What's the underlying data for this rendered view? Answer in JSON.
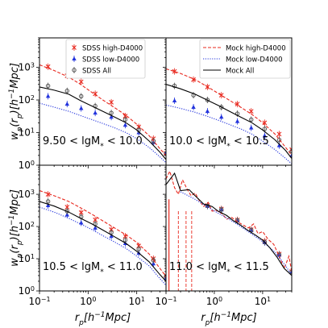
{
  "chart_data": [
    {
      "type": "line",
      "panel_label": "9.50 < lgM* < 10.0",
      "label_main": "9.50 < lgM",
      "label_tail": " < 10.0",
      "legend": [
        "SDSS high-D4000",
        "SDSS low-D4000",
        "SDSS All"
      ],
      "xscale": "log",
      "yscale": "log",
      "xlim": [
        0.1,
        40
      ],
      "ylim": [
        1,
        8000
      ],
      "series": [
        {
          "name": "SDSS high-D4000",
          "style": "errorbar",
          "marker": "x",
          "color": "#e8281e",
          "x": [
            0.15,
            0.37,
            0.72,
            1.4,
            3.0,
            5.8,
            11.0,
            22.0,
            40.0
          ],
          "y": [
            1050,
            550,
            360,
            155,
            85,
            32,
            15,
            6.5,
            2.3
          ]
        },
        {
          "name": "SDSS low-D4000",
          "style": "errorbar",
          "marker": "triangle",
          "color": "#2233dd",
          "x": [
            0.15,
            0.37,
            0.72,
            1.4,
            3.0,
            5.8,
            11.0,
            22.0,
            40.0
          ],
          "y": [
            130,
            75,
            55,
            40,
            30,
            17,
            10,
            5,
            2.4
          ]
        },
        {
          "name": "SDSS All",
          "style": "errorbar",
          "marker": "o",
          "color": "#555555",
          "x": [
            0.15,
            0.37,
            0.72,
            1.4,
            3.0,
            5.8,
            11.0,
            22.0,
            40.0
          ],
          "y": [
            270,
            190,
            130,
            65,
            40,
            25,
            12,
            5.5,
            2.3
          ]
        },
        {
          "name": "Mock high-D4000",
          "style": "dashed",
          "color": "#e8281e",
          "x": [
            0.1,
            0.2,
            0.4,
            0.7,
            1.2,
            2,
            3.5,
            6,
            10,
            18,
            30,
            40
          ],
          "y": [
            1200,
            800,
            500,
            300,
            170,
            100,
            58,
            34,
            18,
            8,
            3.2,
            2
          ]
        },
        {
          "name": "Mock low-D4000",
          "style": "dotted",
          "color": "#2233dd",
          "x": [
            0.1,
            0.2,
            0.4,
            0.7,
            1.2,
            2,
            3.5,
            6,
            10,
            18,
            30,
            40
          ],
          "y": [
            80,
            60,
            45,
            33,
            25,
            19,
            14,
            10,
            6.5,
            3.5,
            1.8,
            1.2
          ]
        },
        {
          "name": "Mock All",
          "style": "solid",
          "color": "#000000",
          "x": [
            0.1,
            0.2,
            0.4,
            0.7,
            1.2,
            2,
            3.5,
            6,
            10,
            18,
            30,
            40
          ],
          "y": [
            250,
            200,
            150,
            95,
            65,
            45,
            30,
            20,
            12,
            5.5,
            2.5,
            1.5
          ]
        }
      ]
    },
    {
      "type": "line",
      "panel_label": "10.0 < lgM* < 10.5",
      "label_main": "10.0 < lgM",
      "label_tail": " < 10.5",
      "legend": [
        "Mock high-D4000",
        "Mock low-D4000",
        "Mock All"
      ],
      "xscale": "log",
      "yscale": "log",
      "xlim": [
        0.1,
        40
      ],
      "ylim": [
        1,
        8000
      ],
      "series": [
        {
          "name": "SDSS high-D4000",
          "style": "errorbar",
          "marker": "x",
          "color": "#e8281e",
          "x": [
            0.15,
            0.37,
            0.72,
            1.4,
            3.0,
            5.8,
            11.0,
            22.0,
            40.0
          ],
          "y": [
            750,
            420,
            250,
            140,
            75,
            45,
            20,
            9,
            3
          ]
        },
        {
          "name": "SDSS low-D4000",
          "style": "errorbar",
          "marker": "triangle",
          "color": "#2233dd",
          "x": [
            0.15,
            0.37,
            0.72,
            1.4,
            3.0,
            5.8,
            11.0,
            22.0,
            40.0
          ],
          "y": [
            95,
            60,
            45,
            30,
            22,
            14,
            8,
            4,
            2
          ]
        },
        {
          "name": "SDSS All",
          "style": "errorbar",
          "marker": "o",
          "color": "#555555",
          "x": [
            0.15,
            0.37,
            0.72,
            1.4,
            3.0,
            5.8,
            11.0,
            22.0,
            40.0
          ],
          "y": [
            270,
            140,
            100,
            60,
            38,
            25,
            13,
            6,
            2.7
          ]
        },
        {
          "name": "Mock high-D4000",
          "style": "dashed",
          "color": "#e8281e",
          "x": [
            0.1,
            0.2,
            0.4,
            0.7,
            1.2,
            2,
            3.5,
            6,
            10,
            18,
            30,
            40
          ],
          "y": [
            900,
            650,
            420,
            260,
            160,
            100,
            60,
            36,
            20,
            9,
            3.5,
            2
          ]
        },
        {
          "name": "Mock low-D4000",
          "style": "dotted",
          "color": "#2233dd",
          "x": [
            0.1,
            0.2,
            0.4,
            0.7,
            1.2,
            2,
            3.5,
            6,
            10,
            18,
            30,
            40
          ],
          "y": [
            70,
            55,
            42,
            32,
            24,
            18,
            13,
            9,
            5.5,
            3,
            1.6,
            1.1
          ]
        },
        {
          "name": "Mock All",
          "style": "solid",
          "color": "#000000",
          "x": [
            0.1,
            0.2,
            0.4,
            0.7,
            1.2,
            2,
            3.5,
            6,
            10,
            18,
            30,
            40
          ],
          "y": [
            300,
            220,
            150,
            100,
            68,
            46,
            30,
            20,
            12,
            6,
            2.8,
            1.6
          ]
        }
      ]
    },
    {
      "type": "line",
      "panel_label": "10.5 < lgM* < 11.0",
      "label_main": "10.5 < lgM",
      "label_tail": " < 11.0",
      "legend": [],
      "xscale": "log",
      "yscale": "log",
      "xlim": [
        0.1,
        40
      ],
      "ylim": [
        1,
        8000
      ],
      "series": [
        {
          "name": "SDSS high-D4000",
          "style": "errorbar",
          "marker": "x",
          "color": "#e8281e",
          "x": [
            0.15,
            0.37,
            0.72,
            1.4,
            3.0,
            5.8,
            11.0,
            22.0,
            40.0
          ],
          "y": [
            1000,
            400,
            270,
            160,
            80,
            50,
            25,
            10,
            3
          ]
        },
        {
          "name": "SDSS low-D4000",
          "style": "errorbar",
          "marker": "triangle",
          "color": "#2233dd",
          "x": [
            0.15,
            0.37,
            0.72,
            1.4,
            3.0,
            5.8,
            11.0,
            22.0,
            40.0
          ],
          "y": [
            450,
            230,
            130,
            90,
            50,
            30,
            15,
            7,
            2.5
          ]
        },
        {
          "name": "SDSS All",
          "style": "errorbar",
          "marker": "o",
          "color": "#555555",
          "x": [
            0.15,
            0.37,
            0.72,
            1.4,
            3.0,
            5.8,
            11.0,
            22.0,
            40.0
          ],
          "y": [
            600,
            300,
            200,
            120,
            65,
            38,
            20,
            9,
            2.8
          ]
        },
        {
          "name": "Mock high-D4000",
          "style": "dashed",
          "color": "#e8281e",
          "x": [
            0.1,
            0.2,
            0.4,
            0.7,
            1.2,
            2,
            3.5,
            6,
            10,
            18,
            30,
            40
          ],
          "y": [
            1300,
            900,
            600,
            380,
            240,
            150,
            90,
            55,
            32,
            14,
            5,
            2.8
          ]
        },
        {
          "name": "Mock low-D4000",
          "style": "dotted",
          "color": "#2233dd",
          "x": [
            0.1,
            0.2,
            0.4,
            0.7,
            1.2,
            2,
            3.5,
            6,
            10,
            18,
            30,
            40
          ],
          "y": [
            400,
            280,
            180,
            120,
            80,
            52,
            33,
            21,
            12,
            6,
            2.4,
            1.5
          ]
        },
        {
          "name": "Mock All",
          "style": "solid",
          "color": "#000000",
          "x": [
            0.1,
            0.2,
            0.4,
            0.7,
            1.2,
            2,
            3.5,
            6,
            10,
            18,
            30,
            40
          ],
          "y": [
            600,
            430,
            280,
            180,
            120,
            78,
            48,
            30,
            17,
            8,
            3.2,
            2
          ]
        }
      ]
    },
    {
      "type": "line",
      "panel_label": "11.0 < lgM* < 11.5",
      "label_main": "11.0 < lgM",
      "label_tail": " < 11.5",
      "legend": [],
      "xscale": "log",
      "yscale": "log",
      "xlim": [
        0.1,
        40
      ],
      "ylim": [
        1,
        8000
      ],
      "series": [
        {
          "name": "SDSS high-D4000",
          "style": "errorbar",
          "marker": "x",
          "color": "#e8281e",
          "x": [
            0.72,
            1.4,
            3.0,
            5.8,
            11.0,
            22.0,
            40.0
          ],
          "y": [
            450,
            350,
            160,
            80,
            35,
            14,
            4
          ]
        },
        {
          "name": "SDSS low-D4000",
          "style": "errorbar",
          "marker": "triangle",
          "color": "#2233dd",
          "x": [
            0.72,
            1.4,
            3.0,
            5.8,
            11.0,
            22.0,
            40.0
          ],
          "y": [
            430,
            330,
            150,
            75,
            32,
            13,
            3.8
          ]
        },
        {
          "name": "SDSS All",
          "style": "errorbar",
          "marker": "o",
          "color": "#555555",
          "x": [
            0.72,
            1.4,
            3.0,
            5.8,
            11.0,
            22.0,
            40.0
          ],
          "y": [
            440,
            340,
            155,
            78,
            33,
            13.5,
            3.9
          ]
        },
        {
          "name": "Mock high-D4000",
          "style": "dashed",
          "color": "#e8281e",
          "x": [
            0.1,
            0.12,
            0.15,
            0.18,
            0.22,
            0.27,
            0.33,
            0.4,
            0.5,
            0.6,
            0.75,
            0.9,
            1.1,
            1.4,
            1.8,
            2.3,
            3,
            4,
            5,
            6.5,
            8,
            10,
            13,
            17,
            22,
            28,
            35,
            40
          ],
          "y": [
            3000,
            5200,
            1600,
            1000,
            2800,
            1500,
            900,
            1100,
            600,
            420,
            560,
            300,
            320,
            260,
            170,
            190,
            140,
            110,
            90,
            120,
            60,
            70,
            40,
            28,
            12,
            5,
            12,
            4
          ]
        },
        {
          "name": "Mock low-D4000",
          "style": "dotted",
          "color": "#2233dd",
          "x": [
            0.2,
            0.4,
            0.7,
            1.2,
            2,
            3.5,
            6,
            10,
            18,
            30,
            40
          ],
          "y": [
            1200,
            700,
            420,
            260,
            170,
            100,
            58,
            34,
            16,
            6,
            3
          ]
        },
        {
          "name": "Mock All",
          "style": "solid",
          "color": "#000000",
          "x": [
            0.1,
            0.15,
            0.2,
            0.3,
            0.4,
            0.6,
            0.9,
            1.2,
            1.8,
            2.5,
            3.5,
            5,
            7,
            10,
            14,
            20,
            28,
            40
          ],
          "y": [
            2000,
            4500,
            1300,
            1400,
            900,
            500,
            420,
            300,
            220,
            150,
            110,
            75,
            55,
            38,
            22,
            11,
            5,
            3
          ]
        }
      ]
    }
  ],
  "axes": {
    "ylabel_main": "w",
    "ylabel_sub": "p",
    "ylabel_rest": "(r",
    "ylabel_tail": ")[h",
    "ylabel_end": "Mpc]",
    "xlabel_main": "r",
    "xlabel_sub": "p",
    "xlabel_rest": "[h",
    "xlabel_end": "Mpc]",
    "neg_one": "−1",
    "y_ticks": [
      {
        "base": "10",
        "exp": "0",
        "value": 1
      },
      {
        "base": "10",
        "exp": "1",
        "value": 10
      },
      {
        "base": "10",
        "exp": "2",
        "value": 100
      },
      {
        "base": "10",
        "exp": "3",
        "value": 1000
      }
    ],
    "x_ticks": [
      {
        "base": "10",
        "exp": "−1",
        "value": 0.1
      },
      {
        "base": "10",
        "exp": "0",
        "value": 1
      },
      {
        "base": "10",
        "exp": "1",
        "value": 10
      }
    ],
    "mstar_sub": "*"
  }
}
